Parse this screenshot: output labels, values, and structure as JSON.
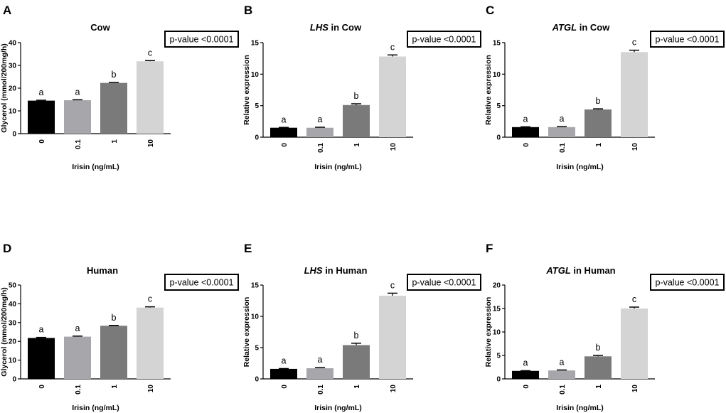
{
  "colors": {
    "bars": [
      "#000000",
      "#a7a6ab",
      "#7a7a7a",
      "#d4d4d4"
    ],
    "axis": "#000000"
  },
  "chart_data": [
    {
      "panel": "A",
      "type": "bar",
      "title_italic": "",
      "title_rest": "Cow",
      "ylabel": "Glycerol (mmol/200mg/h)",
      "xlabel": "Irisin (ng/mL)",
      "categories": [
        "0",
        "0.1",
        "1",
        "10"
      ],
      "values": [
        14.5,
        14.7,
        22.3,
        31.8
      ],
      "errors": [
        0.2,
        0.2,
        0.2,
        0.3
      ],
      "letters": [
        "a",
        "a",
        "b",
        "c"
      ],
      "ylim": [
        0,
        40
      ],
      "yticks": [
        "0",
        "10",
        "20",
        "30",
        "40"
      ],
      "pvalue": "p-value <0.0001"
    },
    {
      "panel": "B",
      "type": "bar",
      "title_italic": "LHS",
      "title_rest": " in Cow",
      "ylabel": "Relative expression",
      "xlabel": "Irisin (ng/mL)",
      "categories": [
        "0",
        "0.1",
        "1",
        "10"
      ],
      "values": [
        1.5,
        1.5,
        5.1,
        12.8
      ],
      "errors": [
        0.05,
        0.08,
        0.2,
        0.25
      ],
      "letters": [
        "a",
        "a",
        "b",
        "c"
      ],
      "ylim": [
        0,
        15
      ],
      "yticks": [
        "0",
        "5",
        "10",
        "15"
      ],
      "pvalue": "p-value <0.0001"
    },
    {
      "panel": "C",
      "type": "bar",
      "title_italic": "ATGL",
      "title_rest": " in Cow",
      "ylabel": "Relative expression",
      "xlabel": "Irisin (ng/mL)",
      "categories": [
        "0",
        "0.1",
        "1",
        "10"
      ],
      "values": [
        1.6,
        1.6,
        4.4,
        13.5
      ],
      "errors": [
        0.05,
        0.08,
        0.1,
        0.3
      ],
      "letters": [
        "a",
        "a",
        "b",
        "c"
      ],
      "ylim": [
        0,
        15
      ],
      "yticks": [
        "0",
        "5",
        "10",
        "15"
      ],
      "pvalue": "p-value <0.0001"
    },
    {
      "panel": "D",
      "type": "bar",
      "title_italic": "",
      "title_rest": "Human",
      "ylabel": "Glycerol (mmol/200mg/h)",
      "xlabel": "Irisin (ng/mL)",
      "categories": [
        "0",
        "0.1",
        "1",
        "10"
      ],
      "values": [
        21.8,
        22.5,
        28.3,
        38.0
      ],
      "errors": [
        0.3,
        0.3,
        0.2,
        0.4
      ],
      "letters": [
        "a",
        "a",
        "b",
        "c"
      ],
      "ylim": [
        0,
        50
      ],
      "yticks": [
        "0",
        "10",
        "20",
        "30",
        "40",
        "50"
      ],
      "pvalue": "p-value <0.0001"
    },
    {
      "panel": "E",
      "type": "bar",
      "title_italic": "LHS",
      "title_rest": " in Human",
      "ylabel": "Relative expression",
      "xlabel": "Irisin (ng/mL)",
      "categories": [
        "0",
        "0.1",
        "1",
        "10"
      ],
      "values": [
        1.6,
        1.7,
        5.4,
        13.3
      ],
      "errors": [
        0.05,
        0.1,
        0.3,
        0.4
      ],
      "letters": [
        "a",
        "a",
        "b",
        "c"
      ],
      "ylim": [
        0,
        15
      ],
      "yticks": [
        "0",
        "5",
        "10",
        "15"
      ],
      "pvalue": "p-value <0.0001"
    },
    {
      "panel": "F",
      "type": "bar",
      "title_italic": "ATGL",
      "title_rest": " in Human",
      "ylabel": "Relative expression",
      "xlabel": "Irisin (ng/mL)",
      "categories": [
        "0",
        "0.1",
        "1",
        "10"
      ],
      "values": [
        1.7,
        1.8,
        4.8,
        15.0
      ],
      "errors": [
        0.05,
        0.1,
        0.2,
        0.3
      ],
      "letters": [
        "a",
        "a",
        "b",
        "c"
      ],
      "ylim": [
        0,
        20
      ],
      "yticks": [
        "0",
        "5",
        "10",
        "15",
        "20"
      ],
      "pvalue": "p-value <0.0001"
    }
  ]
}
